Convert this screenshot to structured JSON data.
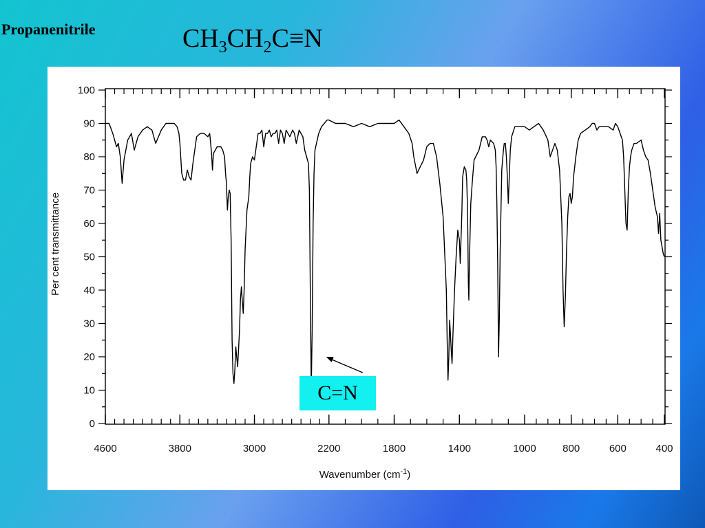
{
  "slide": {
    "title": "Propanenitrile",
    "formula": {
      "p1": "CH",
      "s1": "3",
      "p2": "CH",
      "s2": "2",
      "p3": "C≡N"
    },
    "annotation": {
      "label": "C=N",
      "x": 2230,
      "y": 20
    }
  },
  "chart_data": {
    "type": "line",
    "title": "",
    "xlabel": "Wavenumber  (cm",
    "xlabel_sup": "-1",
    "xlabel_close": ")",
    "ylabel": "Per cent transmittance",
    "x_ticks": [
      {
        "value": 4600,
        "label": "4600"
      },
      {
        "value": 3800,
        "label": "3800"
      },
      {
        "value": 3000,
        "label": "3000"
      },
      {
        "value": 2200,
        "label": "2200"
      },
      {
        "value": 1800,
        "label": "1800"
      },
      {
        "value": 1400,
        "label": "1400"
      },
      {
        "value": 1000,
        "label": "1000"
      },
      {
        "value": 800,
        "label": "800"
      },
      {
        "value": 600,
        "label": "600"
      },
      {
        "value": 400,
        "label": "400"
      }
    ],
    "y_ticks": [
      0,
      10,
      20,
      30,
      40,
      50,
      60,
      70,
      80,
      90,
      100
    ],
    "ylim": [
      0,
      100
    ],
    "x_scale": "segmented: 4600-2200 (0-40% of axis), 2200-1000 (40-75%), 1000-400 (75-100%)",
    "grid": false,
    "line_color": "#000000",
    "series": [
      {
        "points": [
          [
            4600,
            90
          ],
          [
            4560,
            90
          ],
          [
            4520,
            87
          ],
          [
            4480,
            83
          ],
          [
            4460,
            84
          ],
          [
            4440,
            80
          ],
          [
            4420,
            72
          ],
          [
            4400,
            79
          ],
          [
            4360,
            85
          ],
          [
            4320,
            87
          ],
          [
            4290,
            82
          ],
          [
            4250,
            86
          ],
          [
            4200,
            88
          ],
          [
            4150,
            89
          ],
          [
            4100,
            88
          ],
          [
            4060,
            84
          ],
          [
            4000,
            88
          ],
          [
            3950,
            90
          ],
          [
            3900,
            90
          ],
          [
            3860,
            90
          ],
          [
            3830,
            89
          ],
          [
            3810,
            87
          ],
          [
            3800,
            84
          ],
          [
            3780,
            75
          ],
          [
            3760,
            73
          ],
          [
            3740,
            73
          ],
          [
            3720,
            76
          ],
          [
            3700,
            74
          ],
          [
            3680,
            73
          ],
          [
            3660,
            78
          ],
          [
            3620,
            86
          ],
          [
            3580,
            87
          ],
          [
            3540,
            87
          ],
          [
            3500,
            86
          ],
          [
            3480,
            87
          ],
          [
            3460,
            81
          ],
          [
            3450,
            76
          ],
          [
            3440,
            81
          ],
          [
            3400,
            83
          ],
          [
            3360,
            83
          ],
          [
            3340,
            82
          ],
          [
            3320,
            80
          ],
          [
            3310,
            75
          ],
          [
            3300,
            72
          ],
          [
            3290,
            64
          ],
          [
            3280,
            68
          ],
          [
            3270,
            70
          ],
          [
            3260,
            69
          ],
          [
            3250,
            55
          ],
          [
            3240,
            25
          ],
          [
            3230,
            15
          ],
          [
            3220,
            12
          ],
          [
            3210,
            16
          ],
          [
            3200,
            23
          ],
          [
            3190,
            20
          ],
          [
            3180,
            17
          ],
          [
            3160,
            28
          ],
          [
            3150,
            37
          ],
          [
            3140,
            41
          ],
          [
            3130,
            37
          ],
          [
            3120,
            33
          ],
          [
            3110,
            40
          ],
          [
            3100,
            52
          ],
          [
            3080,
            64
          ],
          [
            3060,
            68
          ],
          [
            3050,
            74
          ],
          [
            3040,
            78
          ],
          [
            3020,
            80
          ],
          [
            3000,
            79
          ],
          [
            2980,
            83
          ],
          [
            2960,
            87
          ],
          [
            2940,
            87
          ],
          [
            2920,
            88
          ],
          [
            2900,
            83
          ],
          [
            2880,
            87
          ],
          [
            2860,
            87
          ],
          [
            2840,
            88
          ],
          [
            2820,
            86
          ],
          [
            2800,
            87
          ],
          [
            2780,
            87
          ],
          [
            2760,
            88
          ],
          [
            2740,
            84
          ],
          [
            2720,
            88
          ],
          [
            2700,
            87
          ],
          [
            2680,
            84
          ],
          [
            2660,
            88
          ],
          [
            2640,
            87
          ],
          [
            2620,
            86
          ],
          [
            2590,
            88
          ],
          [
            2570,
            87
          ],
          [
            2550,
            84
          ],
          [
            2520,
            88
          ],
          [
            2500,
            87
          ],
          [
            2480,
            86
          ],
          [
            2460,
            82
          ],
          [
            2440,
            80
          ],
          [
            2420,
            78
          ],
          [
            2410,
            70
          ],
          [
            2400,
            40
          ],
          [
            2390,
            10
          ],
          [
            2380,
            28
          ],
          [
            2370,
            60
          ],
          [
            2360,
            75
          ],
          [
            2350,
            82
          ],
          [
            2310,
            87
          ],
          [
            2280,
            89
          ],
          [
            2250,
            90
          ],
          [
            2220,
            91
          ],
          [
            2200,
            91
          ],
          [
            2160,
            90
          ],
          [
            2100,
            90
          ],
          [
            2050,
            89
          ],
          [
            2000,
            90
          ],
          [
            1950,
            89
          ],
          [
            1900,
            90
          ],
          [
            1850,
            90
          ],
          [
            1800,
            90
          ],
          [
            1770,
            91
          ],
          [
            1740,
            89
          ],
          [
            1710,
            87
          ],
          [
            1690,
            84
          ],
          [
            1680,
            80
          ],
          [
            1660,
            75
          ],
          [
            1640,
            77
          ],
          [
            1620,
            79
          ],
          [
            1600,
            83
          ],
          [
            1580,
            84
          ],
          [
            1560,
            84
          ],
          [
            1540,
            80
          ],
          [
            1520,
            72
          ],
          [
            1500,
            62
          ],
          [
            1480,
            40
          ],
          [
            1475,
            25
          ],
          [
            1470,
            13
          ],
          [
            1465,
            20
          ],
          [
            1460,
            31
          ],
          [
            1455,
            27
          ],
          [
            1450,
            22
          ],
          [
            1445,
            18
          ],
          [
            1440,
            26
          ],
          [
            1430,
            40
          ],
          [
            1420,
            50
          ],
          [
            1410,
            58
          ],
          [
            1400,
            55
          ],
          [
            1395,
            48
          ],
          [
            1390,
            55
          ],
          [
            1385,
            63
          ],
          [
            1380,
            74
          ],
          [
            1370,
            77
          ],
          [
            1360,
            76
          ],
          [
            1355,
            73
          ],
          [
            1350,
            64
          ],
          [
            1345,
            42
          ],
          [
            1342,
            37
          ],
          [
            1338,
            50
          ],
          [
            1330,
            66
          ],
          [
            1320,
            73
          ],
          [
            1310,
            79
          ],
          [
            1300,
            80
          ],
          [
            1280,
            82
          ],
          [
            1260,
            86
          ],
          [
            1240,
            86
          ],
          [
            1230,
            85
          ],
          [
            1220,
            83
          ],
          [
            1210,
            85
          ],
          [
            1190,
            84
          ],
          [
            1180,
            82
          ],
          [
            1175,
            77
          ],
          [
            1170,
            66
          ],
          [
            1165,
            48
          ],
          [
            1160,
            20
          ],
          [
            1155,
            32
          ],
          [
            1150,
            52
          ],
          [
            1140,
            76
          ],
          [
            1130,
            82
          ],
          [
            1125,
            84
          ],
          [
            1118,
            84
          ],
          [
            1112,
            80
          ],
          [
            1106,
            74
          ],
          [
            1100,
            66
          ],
          [
            1094,
            74
          ],
          [
            1088,
            82
          ],
          [
            1080,
            86
          ],
          [
            1060,
            89
          ],
          [
            1040,
            89
          ],
          [
            1020,
            89
          ],
          [
            1000,
            89
          ],
          [
            980,
            88
          ],
          [
            960,
            89
          ],
          [
            940,
            90
          ],
          [
            920,
            88
          ],
          [
            900,
            85
          ],
          [
            890,
            80
          ],
          [
            880,
            82
          ],
          [
            870,
            84
          ],
          [
            860,
            82
          ],
          [
            850,
            76
          ],
          [
            840,
            60
          ],
          [
            835,
            40
          ],
          [
            830,
            29
          ],
          [
            825,
            38
          ],
          [
            820,
            52
          ],
          [
            815,
            62
          ],
          [
            810,
            68
          ],
          [
            805,
            69
          ],
          [
            800,
            66
          ],
          [
            795,
            68
          ],
          [
            790,
            74
          ],
          [
            780,
            80
          ],
          [
            770,
            85
          ],
          [
            760,
            87
          ],
          [
            740,
            88
          ],
          [
            720,
            89
          ],
          [
            710,
            90
          ],
          [
            700,
            90
          ],
          [
            690,
            88
          ],
          [
            680,
            89
          ],
          [
            660,
            89
          ],
          [
            640,
            89
          ],
          [
            620,
            88
          ],
          [
            610,
            90
          ],
          [
            600,
            89
          ],
          [
            590,
            87
          ],
          [
            580,
            85
          ],
          [
            575,
            80
          ],
          [
            570,
            70
          ],
          [
            565,
            60
          ],
          [
            560,
            58
          ],
          [
            555,
            70
          ],
          [
            550,
            77
          ],
          [
            545,
            80
          ],
          [
            540,
            82
          ],
          [
            530,
            84
          ],
          [
            520,
            84
          ],
          [
            500,
            85
          ],
          [
            490,
            82
          ],
          [
            480,
            80
          ],
          [
            470,
            79
          ],
          [
            460,
            75
          ],
          [
            450,
            70
          ],
          [
            440,
            65
          ],
          [
            430,
            62
          ],
          [
            425,
            57
          ],
          [
            420,
            63
          ],
          [
            415,
            55
          ],
          [
            410,
            53
          ],
          [
            405,
            51
          ],
          [
            400,
            50
          ]
        ]
      }
    ]
  }
}
